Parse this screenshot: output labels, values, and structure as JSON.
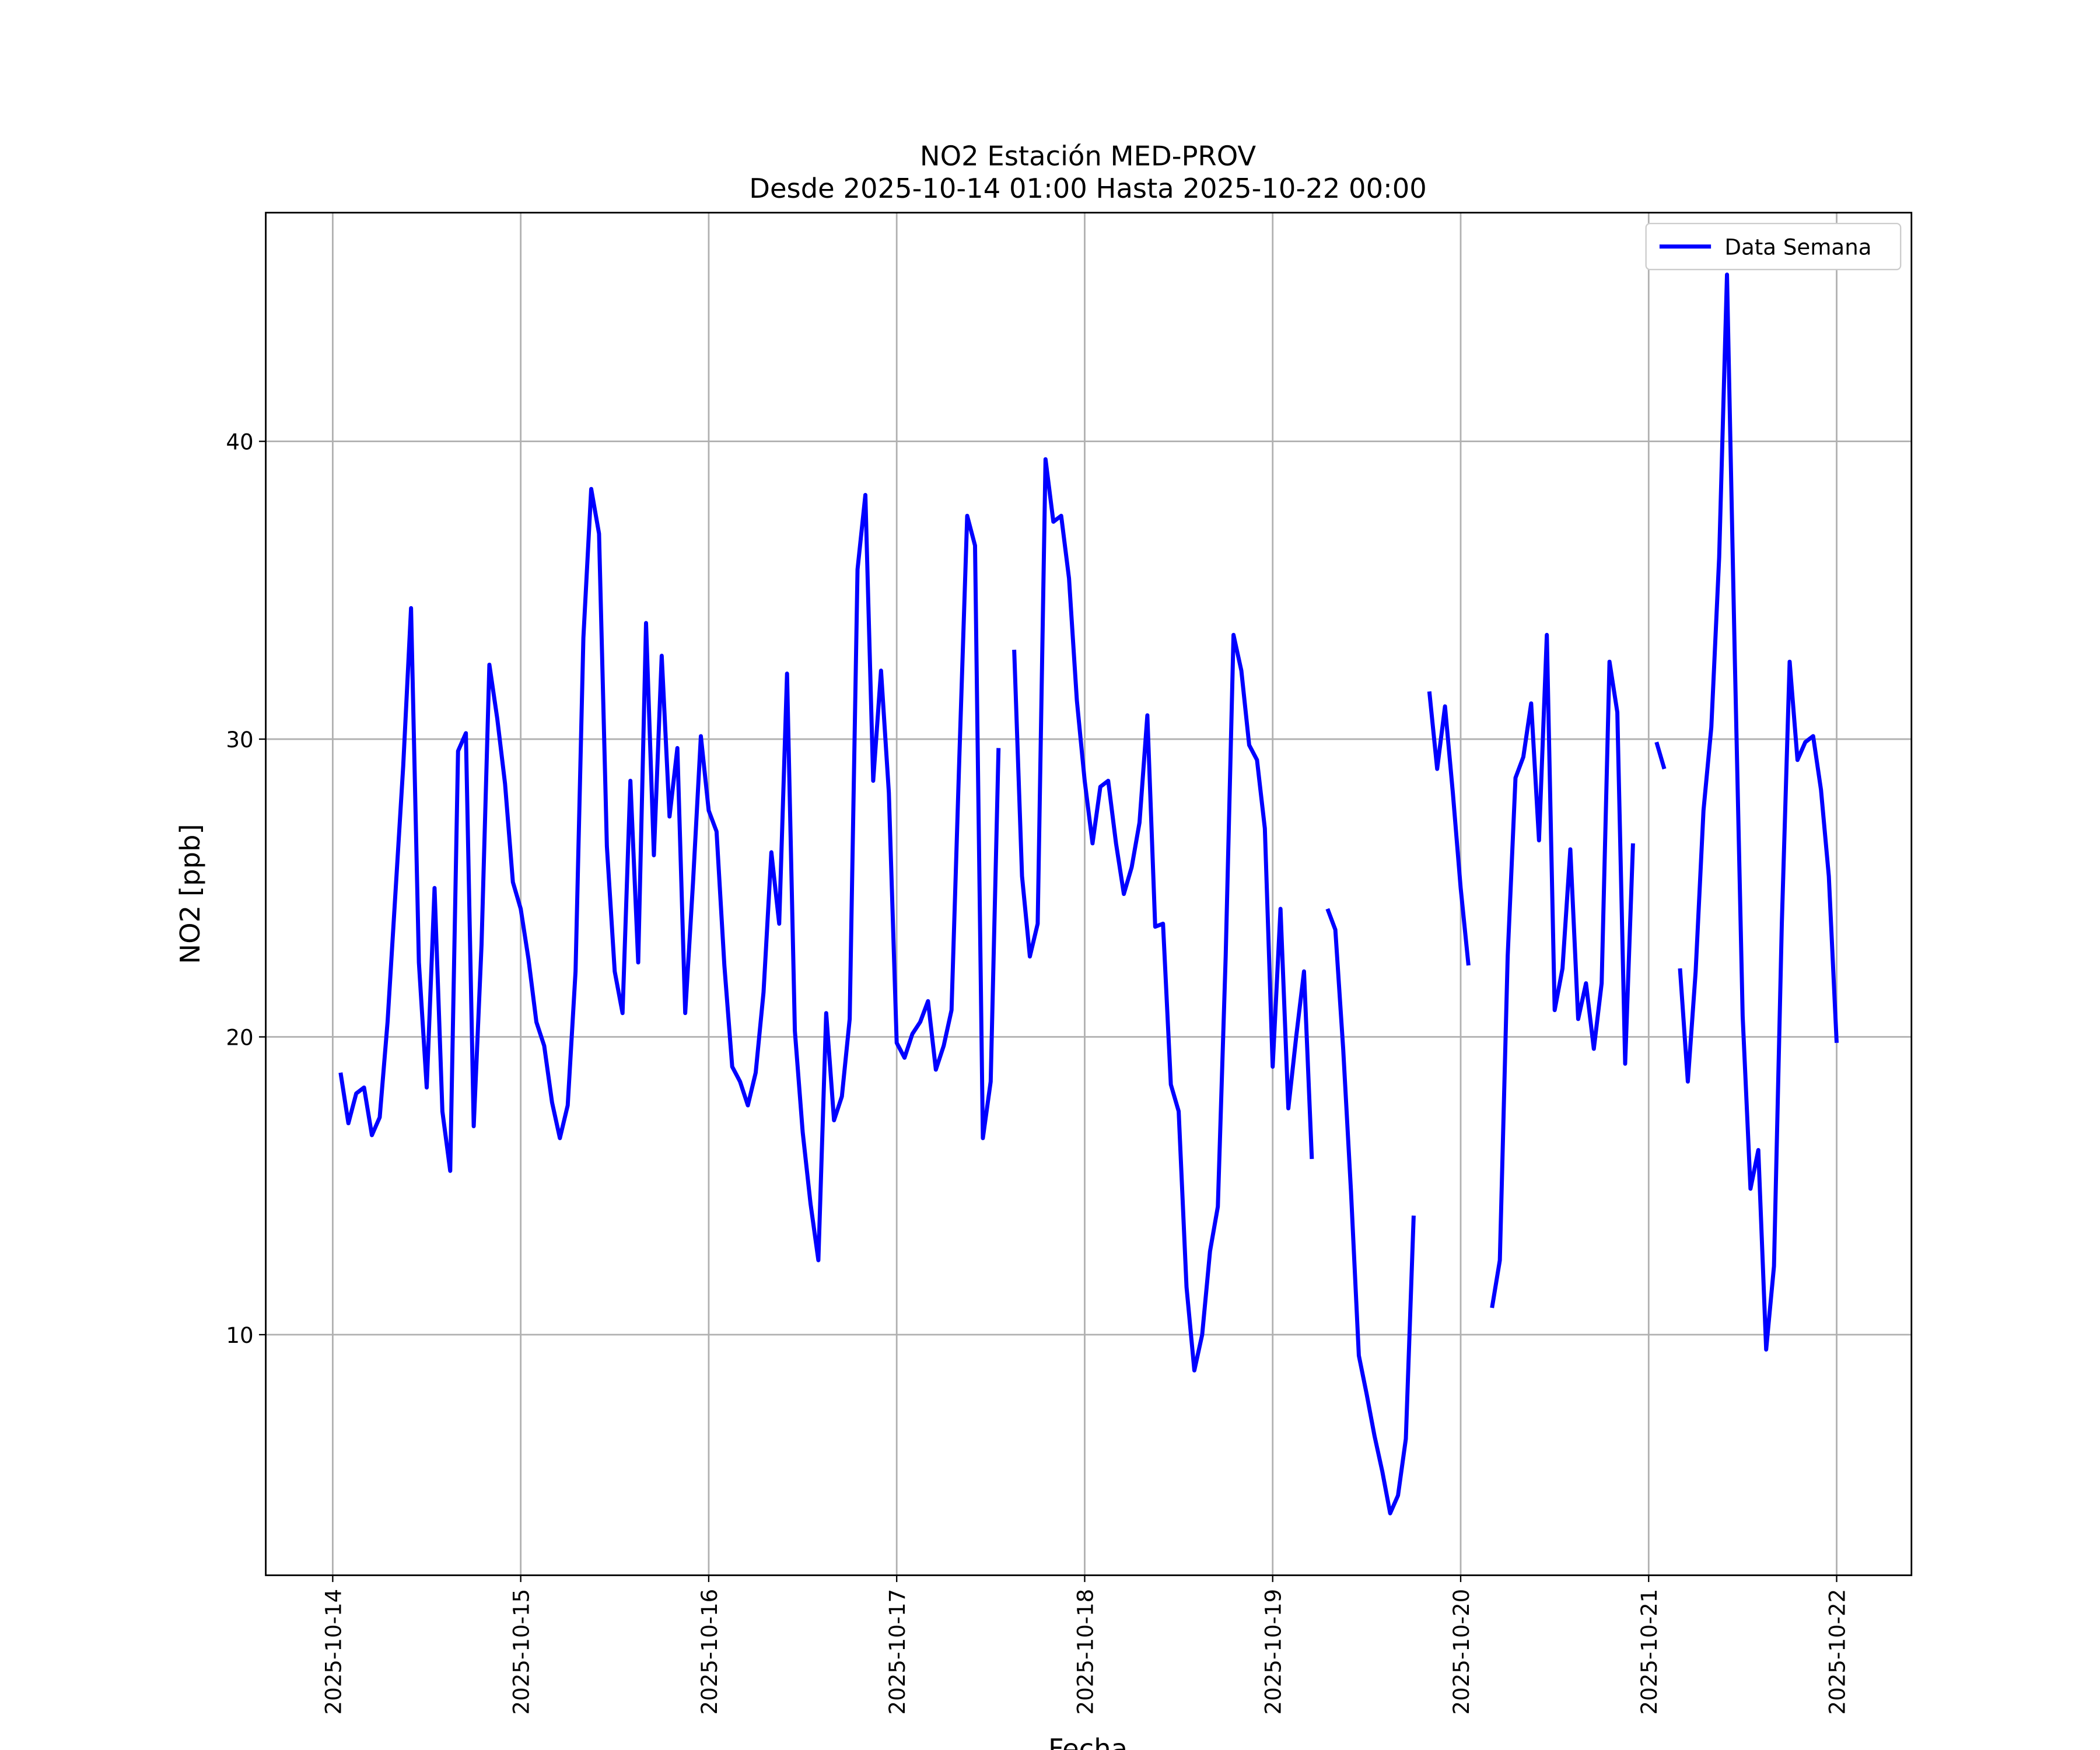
{
  "chart_data": {
    "type": "line",
    "title": "NO2 Estación MED-PROV",
    "subtitle": "Desde 2025-10-14 01:00 Hasta 2025-10-22 00:00",
    "xlabel": "Fecha",
    "ylabel": "NO2 [ppb]",
    "x": [
      1,
      2,
      3,
      4,
      5,
      6,
      7,
      8,
      9,
      10,
      11,
      12,
      13,
      14,
      15,
      16,
      17,
      18,
      19,
      20,
      21,
      22,
      23,
      24,
      25,
      26,
      27,
      28,
      29,
      30,
      31,
      32,
      33,
      34,
      35,
      36,
      37,
      38,
      39,
      40,
      41,
      42,
      43,
      44,
      45,
      46,
      47,
      48,
      49,
      50,
      51,
      52,
      53,
      54,
      55,
      56,
      57,
      58,
      59,
      60,
      61,
      62,
      63,
      64,
      65,
      66,
      67,
      68,
      69,
      70,
      71,
      72,
      73,
      74,
      75,
      76,
      77,
      78,
      79,
      80,
      81,
      82,
      83,
      84,
      85,
      86,
      87,
      88,
      89,
      90,
      91,
      92,
      93,
      94,
      95,
      96,
      97,
      98,
      99,
      100,
      101,
      102,
      103,
      104,
      105,
      106,
      107,
      108,
      109,
      110,
      111,
      112,
      113,
      114,
      115,
      116,
      117,
      118,
      119,
      120,
      121,
      122,
      123,
      124,
      125,
      126,
      127,
      128,
      129,
      130,
      131,
      132,
      133,
      134,
      135,
      136,
      137,
      138,
      139,
      140,
      141,
      142,
      143,
      144,
      145,
      146,
      147,
      148,
      149,
      150,
      151,
      152,
      153,
      154,
      155,
      156,
      157,
      158,
      159,
      160,
      161,
      162,
      163,
      164,
      165,
      166,
      167,
      168,
      169,
      170,
      171,
      172,
      173,
      174,
      175,
      176,
      177,
      178,
      179,
      180,
      181,
      182,
      183,
      184,
      185,
      186,
      187,
      188,
      189,
      190,
      191,
      192
    ],
    "series": [
      {
        "name": "Data Semana",
        "color": "#0000ff",
        "values": [
          18.8,
          17.1,
          18.1,
          18.3,
          16.7,
          17.3,
          20.5,
          24.8,
          29.1,
          34.4,
          22.5,
          18.3,
          25.0,
          17.5,
          15.5,
          29.6,
          30.2,
          17.0,
          23.1,
          32.5,
          30.7,
          28.5,
          25.2,
          24.3,
          22.6,
          20.5,
          19.7,
          17.8,
          16.6,
          17.7,
          22.2,
          33.4,
          38.4,
          36.9,
          26.4,
          22.2,
          20.8,
          28.6,
          22.5,
          33.9,
          26.1,
          32.8,
          27.4,
          29.7,
          20.8,
          25.2,
          30.1,
          27.6,
          26.9,
          22.4,
          19.0,
          18.5,
          17.7,
          18.8,
          21.5,
          26.2,
          23.8,
          32.2,
          20.2,
          16.8,
          14.4,
          12.5,
          20.8,
          17.2,
          18.0,
          20.6,
          35.7,
          38.2,
          28.6,
          32.3,
          28.2,
          19.8,
          19.3,
          20.1,
          20.5,
          21.2,
          18.9,
          19.7,
          20.9,
          29.4,
          37.5,
          36.5,
          16.6,
          18.5,
          29.7,
          null,
          33.0,
          25.4,
          22.7,
          23.8,
          39.4,
          37.3,
          37.5,
          35.4,
          31.3,
          28.6,
          26.5,
          28.4,
          28.6,
          26.5,
          24.8,
          25.7,
          27.2,
          30.8,
          23.7,
          23.8,
          18.4,
          17.5,
          11.6,
          8.8,
          10.0,
          12.8,
          14.3,
          22.7,
          33.5,
          32.3,
          29.8,
          29.3,
          27.0,
          19.0,
          24.3,
          17.6,
          20.0,
          22.2,
          15.9,
          null,
          24.3,
          23.6,
          19.6,
          14.8,
          9.3,
          8.0,
          6.6,
          5.4,
          4.0,
          4.6,
          6.5,
          14.0,
          null,
          31.6,
          29.0,
          31.1,
          28.2,
          25.0,
          22.4,
          null,
          null,
          10.9,
          12.5,
          22.7,
          28.7,
          29.4,
          31.2,
          26.6,
          33.5,
          20.9,
          22.3,
          26.3,
          20.6,
          21.8,
          19.6,
          21.8,
          32.6,
          30.9,
          19.1,
          26.5,
          null,
          null,
          29.9,
          29.0,
          null,
          22.3,
          18.5,
          22.2,
          27.6,
          30.4,
          36.1,
          45.6,
          32.7,
          20.7,
          14.9,
          16.2,
          9.5,
          12.3,
          23.8,
          32.6,
          29.3,
          29.9,
          30.1,
          28.3,
          25.4,
          19.8
        ]
      }
    ],
    "xlim": [
      -8.55,
      201.55
    ],
    "xticks": [
      {
        "value": 0,
        "label": "2025-10-14"
      },
      {
        "value": 24,
        "label": "2025-10-15"
      },
      {
        "value": 48,
        "label": "2025-10-16"
      },
      {
        "value": 72,
        "label": "2025-10-17"
      },
      {
        "value": 96,
        "label": "2025-10-18"
      },
      {
        "value": 120,
        "label": "2025-10-19"
      },
      {
        "value": 144,
        "label": "2025-10-20"
      },
      {
        "value": 168,
        "label": "2025-10-21"
      },
      {
        "value": 192,
        "label": "2025-10-22"
      }
    ],
    "ylim": [
      1.92,
      47.68
    ],
    "yticks": [
      10,
      20,
      30,
      40
    ],
    "grid": true,
    "legend": "upper right"
  }
}
